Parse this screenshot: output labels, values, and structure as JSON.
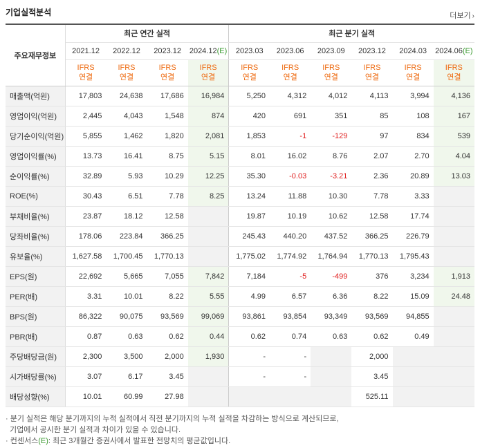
{
  "header": {
    "title": "기업실적분석",
    "more_label": "더보기"
  },
  "table": {
    "row_header": "주요재무정보",
    "group_annual": "최근 연간 실적",
    "group_quarterly": "최근 분기 실적",
    "periods": [
      "2021.12",
      "2022.12",
      "2023.12",
      "2024.12",
      "2023.03",
      "2023.06",
      "2023.09",
      "2023.12",
      "2024.03",
      "2024.06"
    ],
    "estimate_marker": "(E)",
    "ifrs_line1": "IFRS",
    "ifrs_line2": "연결",
    "rows": [
      {
        "label": "매출액(억원)",
        "values": [
          "17,803",
          "24,638",
          "17,686",
          "16,984",
          "5,250",
          "4,312",
          "4,012",
          "4,113",
          "3,994",
          "4,136"
        ]
      },
      {
        "label": "영업이익(억원)",
        "values": [
          "2,445",
          "4,043",
          "1,548",
          "874",
          "420",
          "691",
          "351",
          "85",
          "108",
          "167"
        ]
      },
      {
        "label": "당기순이익(억원)",
        "values": [
          "5,855",
          "1,462",
          "1,820",
          "2,081",
          "1,853",
          "-1",
          "-129",
          "97",
          "834",
          "539"
        ]
      },
      {
        "label": "영업이익률(%)",
        "values": [
          "13.73",
          "16.41",
          "8.75",
          "5.15",
          "8.01",
          "16.02",
          "8.76",
          "2.07",
          "2.70",
          "4.04"
        ]
      },
      {
        "label": "순이익률(%)",
        "values": [
          "32.89",
          "5.93",
          "10.29",
          "12.25",
          "35.30",
          "-0.03",
          "-3.21",
          "2.36",
          "20.89",
          "13.03"
        ]
      },
      {
        "label": "ROE(%)",
        "values": [
          "30.43",
          "6.51",
          "7.78",
          "8.25",
          "13.24",
          "11.88",
          "10.30",
          "7.78",
          "3.33",
          ""
        ]
      },
      {
        "label": "부채비율(%)",
        "values": [
          "23.87",
          "18.12",
          "12.58",
          "",
          "19.87",
          "10.19",
          "10.62",
          "12.58",
          "17.74",
          ""
        ]
      },
      {
        "label": "당좌비율(%)",
        "values": [
          "178.06",
          "223.84",
          "366.25",
          "",
          "245.43",
          "440.20",
          "437.52",
          "366.25",
          "226.79",
          ""
        ]
      },
      {
        "label": "유보율(%)",
        "values": [
          "1,627.58",
          "1,700.45",
          "1,770.13",
          "",
          "1,775.02",
          "1,774.92",
          "1,764.94",
          "1,770.13",
          "1,795.43",
          ""
        ]
      },
      {
        "label": "EPS(원)",
        "values": [
          "22,692",
          "5,665",
          "7,055",
          "7,842",
          "7,184",
          "-5",
          "-499",
          "376",
          "3,234",
          "1,913"
        ]
      },
      {
        "label": "PER(배)",
        "values": [
          "3.31",
          "10.01",
          "8.22",
          "5.55",
          "4.99",
          "6.57",
          "6.36",
          "8.22",
          "15.09",
          "24.48"
        ]
      },
      {
        "label": "BPS(원)",
        "values": [
          "86,322",
          "90,075",
          "93,569",
          "99,069",
          "93,861",
          "93,854",
          "93,349",
          "93,569",
          "94,855",
          ""
        ]
      },
      {
        "label": "PBR(배)",
        "values": [
          "0.87",
          "0.63",
          "0.62",
          "0.44",
          "0.62",
          "0.74",
          "0.63",
          "0.62",
          "0.49",
          ""
        ]
      },
      {
        "label": "주당배당금(원)",
        "values": [
          "2,300",
          "3,500",
          "2,000",
          "1,930",
          "-",
          "-",
          "",
          "2,000",
          "",
          ""
        ]
      },
      {
        "label": "시가배당률(%)",
        "values": [
          "3.07",
          "6.17",
          "3.45",
          "",
          "-",
          "-",
          "",
          "3.45",
          "",
          ""
        ]
      },
      {
        "label": "배당성향(%)",
        "values": [
          "10.01",
          "60.99",
          "27.98",
          "",
          "",
          "",
          "",
          "525.11",
          "",
          ""
        ]
      }
    ]
  },
  "notes": {
    "line1": "· 분기 실적은 해당 분기까지의 누적 실적에서 직전 분기까지의 누적 실적을 차감하는 방식으로 계산되므로,",
    "line2": "기업에서 공시한 분기 실적과 차이가 있을 수 있습니다.",
    "line3_pre": "· 컨센서스",
    "line3_marker": "(E)",
    "line3_post": ": 최근 3개월간 증권사에서 발표한 전망치의 평균값입니다."
  }
}
